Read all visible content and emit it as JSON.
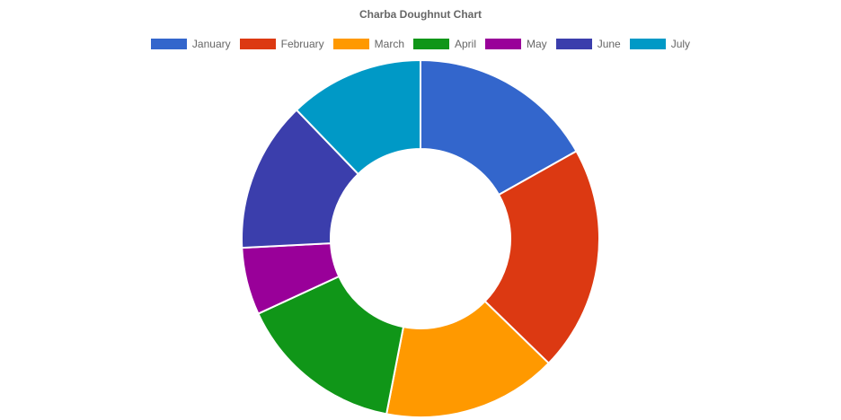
{
  "chart_data": {
    "type": "pie",
    "variant": "doughnut",
    "title": "Charba Doughnut Chart",
    "categories": [
      "January",
      "February",
      "March",
      "April",
      "May",
      "June",
      "July"
    ],
    "values": [
      47,
      57,
      44,
      42,
      17,
      38,
      34
    ],
    "colors": [
      "#3366CC",
      "#DC3912",
      "#FF9900",
      "#109618",
      "#990099",
      "#3B3EAC",
      "#0099C6"
    ],
    "legend_position": "top"
  }
}
